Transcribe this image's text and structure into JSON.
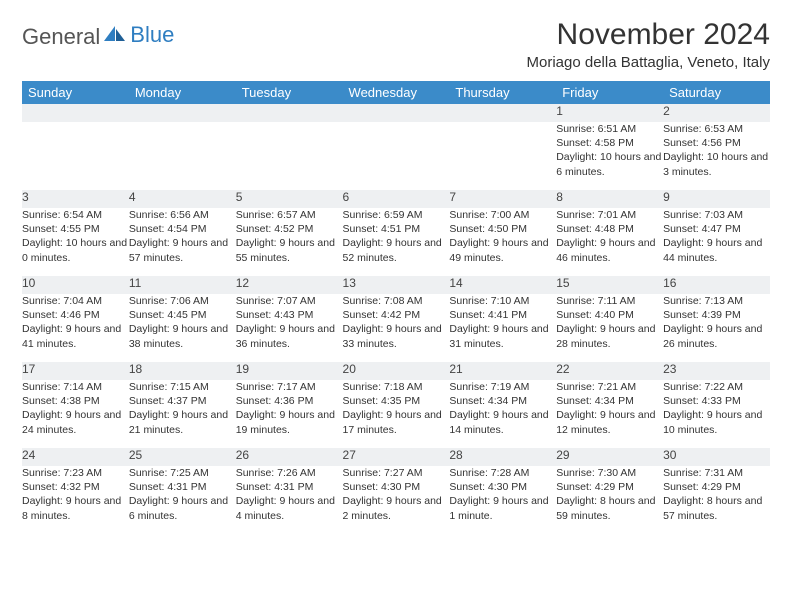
{
  "logo": {
    "text1": "General",
    "text2": "Blue"
  },
  "title": "November 2024",
  "location": "Moriago della Battaglia, Veneto, Italy",
  "day_headers": [
    "Sunday",
    "Monday",
    "Tuesday",
    "Wednesday",
    "Thursday",
    "Friday",
    "Saturday"
  ],
  "colors": {
    "header_bg": "#3b8bc9",
    "header_text": "#ffffff",
    "daynum_bg": "#eef0f2",
    "daynum_border": "#6c7a86",
    "text": "#333333",
    "logo_gray": "#555555",
    "logo_blue": "#2f7ec1"
  },
  "weeks": [
    [
      null,
      null,
      null,
      null,
      null,
      {
        "n": "1",
        "sunrise": "6:51 AM",
        "sunset": "4:58 PM",
        "daylight": "10 hours and 6 minutes."
      },
      {
        "n": "2",
        "sunrise": "6:53 AM",
        "sunset": "4:56 PM",
        "daylight": "10 hours and 3 minutes."
      }
    ],
    [
      {
        "n": "3",
        "sunrise": "6:54 AM",
        "sunset": "4:55 PM",
        "daylight": "10 hours and 0 minutes."
      },
      {
        "n": "4",
        "sunrise": "6:56 AM",
        "sunset": "4:54 PM",
        "daylight": "9 hours and 57 minutes."
      },
      {
        "n": "5",
        "sunrise": "6:57 AM",
        "sunset": "4:52 PM",
        "daylight": "9 hours and 55 minutes."
      },
      {
        "n": "6",
        "sunrise": "6:59 AM",
        "sunset": "4:51 PM",
        "daylight": "9 hours and 52 minutes."
      },
      {
        "n": "7",
        "sunrise": "7:00 AM",
        "sunset": "4:50 PM",
        "daylight": "9 hours and 49 minutes."
      },
      {
        "n": "8",
        "sunrise": "7:01 AM",
        "sunset": "4:48 PM",
        "daylight": "9 hours and 46 minutes."
      },
      {
        "n": "9",
        "sunrise": "7:03 AM",
        "sunset": "4:47 PM",
        "daylight": "9 hours and 44 minutes."
      }
    ],
    [
      {
        "n": "10",
        "sunrise": "7:04 AM",
        "sunset": "4:46 PM",
        "daylight": "9 hours and 41 minutes."
      },
      {
        "n": "11",
        "sunrise": "7:06 AM",
        "sunset": "4:45 PM",
        "daylight": "9 hours and 38 minutes."
      },
      {
        "n": "12",
        "sunrise": "7:07 AM",
        "sunset": "4:43 PM",
        "daylight": "9 hours and 36 minutes."
      },
      {
        "n": "13",
        "sunrise": "7:08 AM",
        "sunset": "4:42 PM",
        "daylight": "9 hours and 33 minutes."
      },
      {
        "n": "14",
        "sunrise": "7:10 AM",
        "sunset": "4:41 PM",
        "daylight": "9 hours and 31 minutes."
      },
      {
        "n": "15",
        "sunrise": "7:11 AM",
        "sunset": "4:40 PM",
        "daylight": "9 hours and 28 minutes."
      },
      {
        "n": "16",
        "sunrise": "7:13 AM",
        "sunset": "4:39 PM",
        "daylight": "9 hours and 26 minutes."
      }
    ],
    [
      {
        "n": "17",
        "sunrise": "7:14 AM",
        "sunset": "4:38 PM",
        "daylight": "9 hours and 24 minutes."
      },
      {
        "n": "18",
        "sunrise": "7:15 AM",
        "sunset": "4:37 PM",
        "daylight": "9 hours and 21 minutes."
      },
      {
        "n": "19",
        "sunrise": "7:17 AM",
        "sunset": "4:36 PM",
        "daylight": "9 hours and 19 minutes."
      },
      {
        "n": "20",
        "sunrise": "7:18 AM",
        "sunset": "4:35 PM",
        "daylight": "9 hours and 17 minutes."
      },
      {
        "n": "21",
        "sunrise": "7:19 AM",
        "sunset": "4:34 PM",
        "daylight": "9 hours and 14 minutes."
      },
      {
        "n": "22",
        "sunrise": "7:21 AM",
        "sunset": "4:34 PM",
        "daylight": "9 hours and 12 minutes."
      },
      {
        "n": "23",
        "sunrise": "7:22 AM",
        "sunset": "4:33 PM",
        "daylight": "9 hours and 10 minutes."
      }
    ],
    [
      {
        "n": "24",
        "sunrise": "7:23 AM",
        "sunset": "4:32 PM",
        "daylight": "9 hours and 8 minutes."
      },
      {
        "n": "25",
        "sunrise": "7:25 AM",
        "sunset": "4:31 PM",
        "daylight": "9 hours and 6 minutes."
      },
      {
        "n": "26",
        "sunrise": "7:26 AM",
        "sunset": "4:31 PM",
        "daylight": "9 hours and 4 minutes."
      },
      {
        "n": "27",
        "sunrise": "7:27 AM",
        "sunset": "4:30 PM",
        "daylight": "9 hours and 2 minutes."
      },
      {
        "n": "28",
        "sunrise": "7:28 AM",
        "sunset": "4:30 PM",
        "daylight": "9 hours and 1 minute."
      },
      {
        "n": "29",
        "sunrise": "7:30 AM",
        "sunset": "4:29 PM",
        "daylight": "8 hours and 59 minutes."
      },
      {
        "n": "30",
        "sunrise": "7:31 AM",
        "sunset": "4:29 PM",
        "daylight": "8 hours and 57 minutes."
      }
    ]
  ],
  "labels": {
    "sunrise": "Sunrise:",
    "sunset": "Sunset:",
    "daylight": "Daylight:"
  }
}
